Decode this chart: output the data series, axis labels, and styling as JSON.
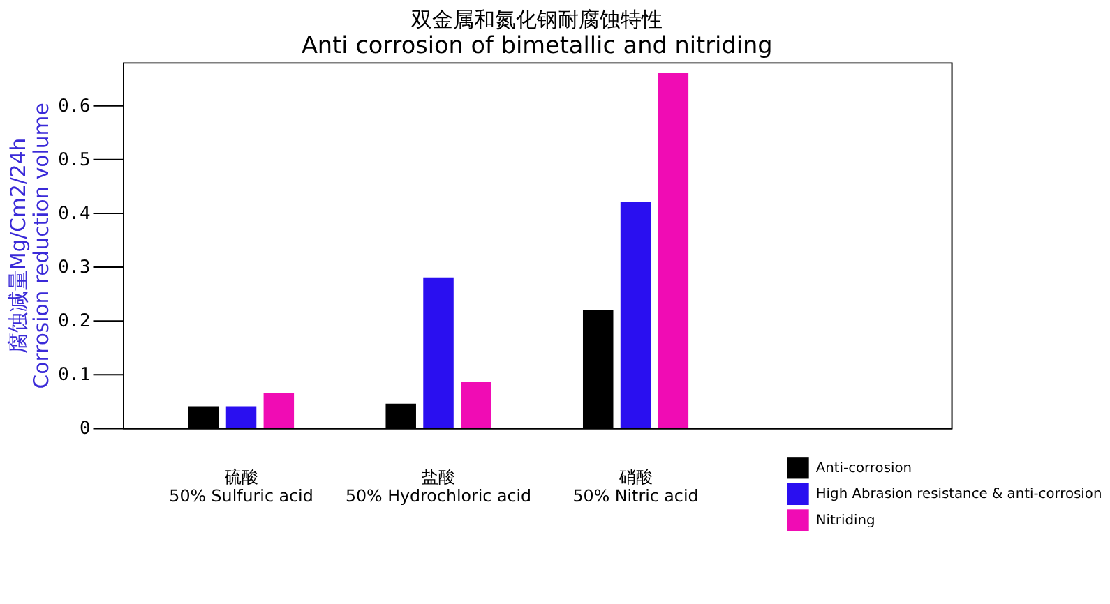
{
  "chart_data": {
    "type": "bar",
    "title": "双金属和氮化钢耐腐蚀特性",
    "subtitle": "Anti corrosion of bimetallic and nitriding",
    "ylabel": "腐蚀减量Mg/Cm2/24h\nCorrosion reduction volume",
    "categories": [
      "硫酸\n50% Sulfuric acid",
      "盐酸\n50% Hydrochloric acid",
      "硝酸\n50% Nitric acid",
      null
    ],
    "series": [
      {
        "name": "Anti-corrosion",
        "color": "#000000",
        "values": [
          0.04,
          0.045,
          0.22,
          null
        ]
      },
      {
        "name": "High Abrasion resistance & anti-corrosion",
        "color": "#2a0ff0",
        "values": [
          0.04,
          0.28,
          0.42,
          null
        ]
      },
      {
        "name": "Nitriding",
        "color": "#f00cb4",
        "values": [
          0.065,
          0.085,
          0.66,
          null
        ]
      }
    ],
    "ylim": [
      0,
      0.68
    ],
    "yticks": [
      0,
      0.1,
      0.2,
      0.3,
      0.4,
      0.5,
      0.6
    ],
    "grid": false,
    "legend": "bottom right"
  }
}
